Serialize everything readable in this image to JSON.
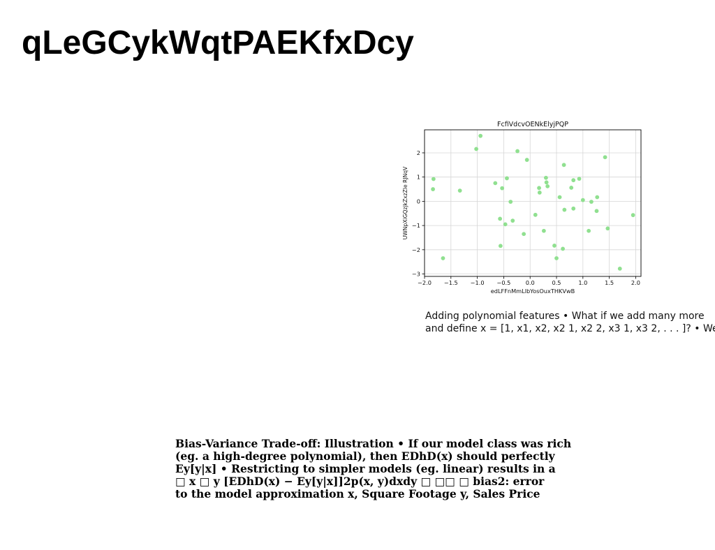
{
  "slide": {
    "title": "qLeGCykWqtPAEKfxDcy"
  },
  "caption": {
    "lines": [
      "Adding polynomial features • What if we add many more",
      "and define x = [1, x1, x2, x2 1, x2 2, x3 1, x3 2, . . . ]? • We"
    ]
  },
  "body": {
    "lines": [
      "Bias-Variance Trade-off: Illustration • If our model class was rich",
      "(eg. a high-degree polynomial), then EDhD(x) should perfectly",
      "Ey[y|x] • Restricting to simpler models (eg. linear) results in a",
      "□ x □ y [EDhD(x) − Ey[y|x]]2p(x, y)dxdy □ □□ □ bias2: error",
      "to the model approximation x, Square Footage y, Sales Price"
    ]
  },
  "chart_data": {
    "type": "scatter",
    "title": "FcfiVdcvOENkElyjPQP",
    "xlabel": "edLFFnMmLlbYosOuxTHKVwB",
    "ylabel": "UWNpXiGQzjkZxzZle RJNqV",
    "xlim": [
      -2.0,
      2.1
    ],
    "ylim": [
      -3.1,
      2.95
    ],
    "xticks": [
      -2.0,
      -1.5,
      -1.0,
      -0.5,
      0.0,
      0.5,
      1.0,
      1.5,
      2.0
    ],
    "xtick_labels": [
      "−2.0",
      "−1.5",
      "−1.0",
      "−0.5",
      "0.0",
      "0.5",
      "1.0",
      "1.5",
      "2.0"
    ],
    "yticks": [
      -3,
      -2,
      -1,
      0,
      1,
      2
    ],
    "ytick_labels": [
      "−3",
      "−2",
      "−1",
      "0",
      "1",
      "2"
    ],
    "grid": true,
    "point_color": "#90e090",
    "series": [
      {
        "points": [
          [
            -1.83,
            0.92
          ],
          [
            -1.84,
            0.5
          ],
          [
            -1.65,
            -2.35
          ],
          [
            -1.33,
            0.44
          ],
          [
            -1.02,
            2.16
          ],
          [
            -0.94,
            2.7
          ],
          [
            -0.66,
            0.75
          ],
          [
            -0.57,
            -0.72
          ],
          [
            -0.56,
            -1.84
          ],
          [
            -0.53,
            0.54
          ],
          [
            -0.47,
            -0.95
          ],
          [
            -0.44,
            0.95
          ],
          [
            -0.37,
            -0.02
          ],
          [
            -0.33,
            -0.8
          ],
          [
            -0.24,
            2.07
          ],
          [
            -0.12,
            -1.35
          ],
          [
            -0.06,
            1.71
          ],
          [
            0.1,
            -0.56
          ],
          [
            0.17,
            0.55
          ],
          [
            0.18,
            0.36
          ],
          [
            0.26,
            -1.22
          ],
          [
            0.3,
            0.97
          ],
          [
            0.31,
            0.78
          ],
          [
            0.33,
            0.62
          ],
          [
            0.46,
            -1.83
          ],
          [
            0.5,
            -2.35
          ],
          [
            0.56,
            0.17
          ],
          [
            0.62,
            -1.96
          ],
          [
            0.64,
            1.5
          ],
          [
            0.65,
            -0.35
          ],
          [
            0.78,
            0.56
          ],
          [
            0.82,
            0.87
          ],
          [
            0.82,
            -0.3
          ],
          [
            0.93,
            0.93
          ],
          [
            1.0,
            0.05
          ],
          [
            1.11,
            -1.22
          ],
          [
            1.16,
            -0.02
          ],
          [
            1.26,
            -0.4
          ],
          [
            1.27,
            0.17
          ],
          [
            1.42,
            1.82
          ],
          [
            1.47,
            -1.12
          ],
          [
            1.7,
            -2.78
          ],
          [
            1.95,
            -0.57
          ]
        ]
      }
    ]
  }
}
